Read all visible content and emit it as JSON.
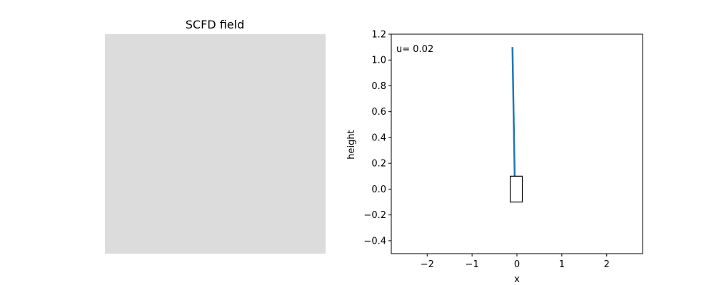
{
  "chart_data": [
    {
      "type": "heatmap",
      "title": "SCFD field",
      "fill_color": "#dcdcdc",
      "axes_visible": false
    },
    {
      "type": "line",
      "title": "",
      "xlabel": "x",
      "ylabel": "height",
      "xlim": [
        -2.8,
        2.8
      ],
      "ylim": [
        -0.5,
        1.2
      ],
      "xticks": [
        -2,
        -1,
        0,
        1,
        2
      ],
      "xtick_labels": [
        "−2",
        "−1",
        "0",
        "1",
        "2"
      ],
      "yticks": [
        -0.4,
        -0.2,
        0.0,
        0.2,
        0.4,
        0.6,
        0.8,
        1.0,
        1.2
      ],
      "ytick_labels": [
        "−0.4",
        "−0.2",
        "0.0",
        "0.2",
        "0.4",
        "0.6",
        "0.8",
        "1.0",
        "1.2"
      ],
      "grid": false,
      "annotation": "u= 0.02",
      "pole": {
        "x": [
          -0.05,
          -0.1
        ],
        "y": [
          0.1,
          1.1
        ],
        "color": "#1f77b4"
      },
      "cart": {
        "x_min": -0.15,
        "x_max": 0.12,
        "y_min": -0.1,
        "y_max": 0.1,
        "edge_color": "#000000"
      }
    }
  ]
}
